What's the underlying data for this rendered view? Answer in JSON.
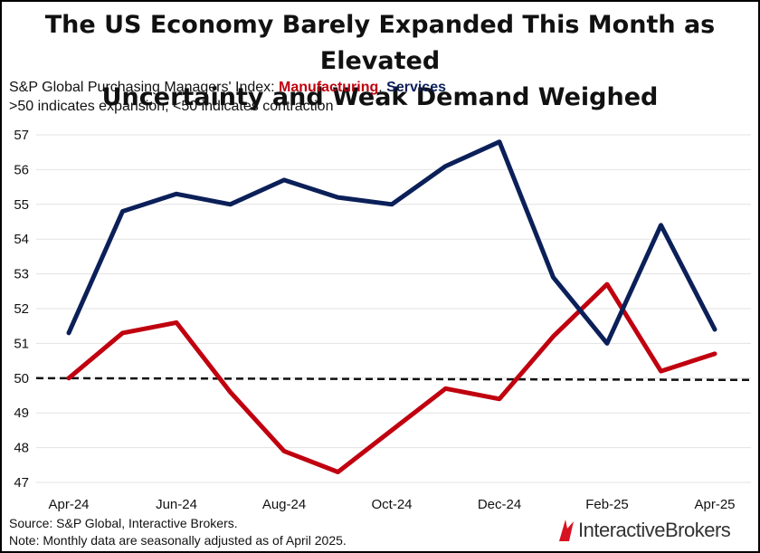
{
  "title_line1": "The US Economy Barely Expanded This Month as Elevated",
  "title_line2": "Uncertainty and Weak Demand Weighed",
  "subtitle_prefix": "S&P Global Purchasing Managers' Index: ",
  "subtitle_mfg": "Manufacturing",
  "subtitle_sep": ", ",
  "subtitle_srv": "Services",
  "subtitle2": ">50 indicates expansion, <50 indicates contraction",
  "source": "Source: S&P Global, Interactive Brokers.",
  "note": "Note: Monthly data are seasonally adjusted as of April 2025.",
  "logo_part1": "Interactive",
  "logo_part2": "Brokers",
  "colors": {
    "manufacturing": "#c0000f",
    "services": "#0b2059",
    "grid": "#e3e3e3",
    "reference": "#111111",
    "logo_mark": "#d81222"
  },
  "chart_data": {
    "type": "line",
    "x": [
      "Apr-24",
      "May-24",
      "Jun-24",
      "Jul-24",
      "Aug-24",
      "Sep-24",
      "Oct-24",
      "Nov-24",
      "Dec-24",
      "Jan-25",
      "Feb-25",
      "Mar-25",
      "Apr-25"
    ],
    "x_tick_labels": [
      "Apr-24",
      "Jun-24",
      "Aug-24",
      "Oct-24",
      "Dec-24",
      "Feb-25",
      "Apr-25"
    ],
    "y_ticks": [
      47,
      48,
      49,
      50,
      51,
      52,
      53,
      54,
      55,
      56,
      57
    ],
    "ylim": [
      47,
      57
    ],
    "grid": true,
    "reference_line": {
      "y": 50,
      "style": "dashed"
    },
    "series": [
      {
        "name": "Manufacturing",
        "color": "#c0000f",
        "values": [
          50.0,
          51.3,
          51.6,
          49.6,
          47.9,
          47.3,
          48.5,
          49.7,
          49.4,
          51.2,
          52.7,
          50.2,
          50.7
        ]
      },
      {
        "name": "Services",
        "color": "#0b2059",
        "values": [
          51.3,
          54.8,
          55.3,
          55.0,
          55.7,
          55.2,
          55.0,
          56.1,
          56.8,
          52.9,
          51.0,
          54.4,
          51.4
        ]
      }
    ]
  }
}
